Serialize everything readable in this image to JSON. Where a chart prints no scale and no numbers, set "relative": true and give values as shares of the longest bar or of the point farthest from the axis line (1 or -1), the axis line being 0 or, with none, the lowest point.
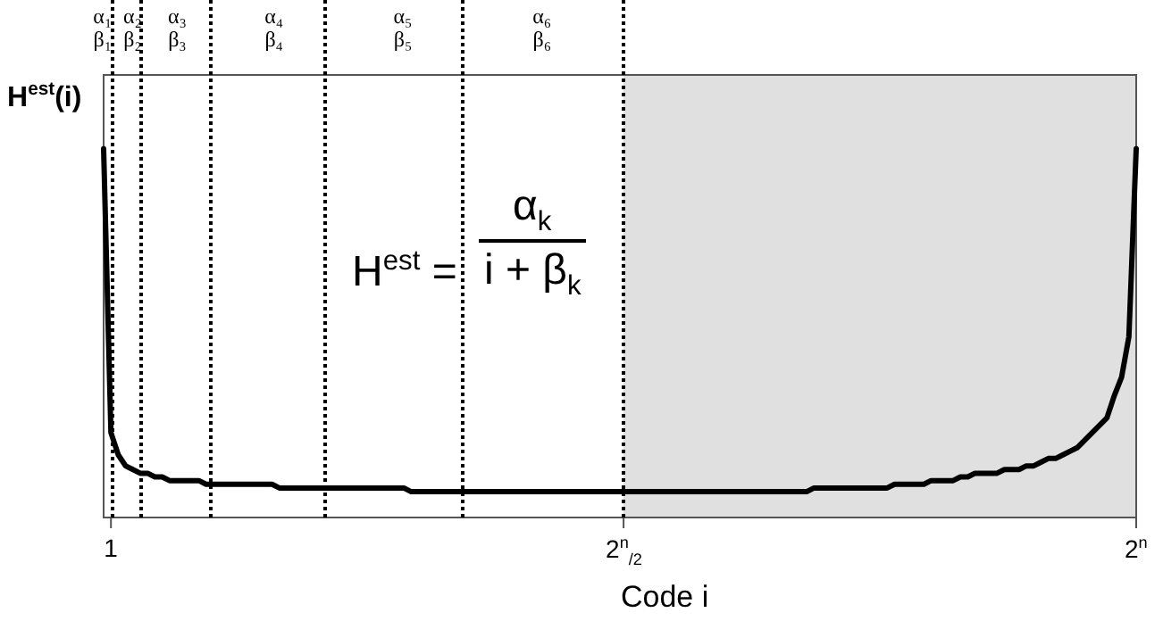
{
  "chart_data": {
    "type": "line",
    "relative": true,
    "xlabel": "Code i",
    "ylabel": "H$^{est}$(i)",
    "categories": [
      null,
      "1",
      null,
      null,
      null,
      null,
      null,
      null,
      null,
      null,
      null,
      null,
      null,
      null,
      null,
      null,
      null,
      null,
      null,
      null,
      null,
      null,
      null,
      null,
      null,
      null,
      null,
      null,
      null,
      null,
      null,
      null,
      null,
      null,
      null,
      null,
      null,
      null,
      null,
      null,
      null,
      null,
      null,
      null,
      null,
      null,
      null,
      null,
      null,
      null,
      null,
      null,
      null,
      null,
      null,
      null,
      null,
      null,
      null,
      null,
      null,
      null,
      null,
      null,
      null,
      null,
      null,
      null,
      null,
      null,
      null,
      "2$^{n}$$_{/2}$",
      null,
      null,
      null,
      null,
      null,
      null,
      null,
      null,
      null,
      null,
      null,
      null,
      null,
      null,
      null,
      null,
      null,
      null,
      null,
      null,
      null,
      null,
      null,
      null,
      null,
      null,
      null,
      null,
      null,
      null,
      null,
      null,
      null,
      null,
      null,
      null,
      null,
      null,
      null,
      null,
      null,
      null,
      null,
      null,
      null,
      null,
      null,
      null,
      null,
      null,
      null,
      null,
      null,
      null,
      null,
      null,
      null,
      null,
      null,
      null,
      null,
      null,
      null,
      null,
      null,
      null,
      null,
      null,
      null,
      "2$^{n}$"
    ],
    "series": [
      {
        "color": "#000000",
        "values": [
          1.0,
          0.23,
          0.17,
          0.14,
          0.13,
          0.12,
          0.12,
          0.11,
          0.11,
          0.1,
          0.1,
          0.1,
          0.1,
          0.1,
          0.09,
          0.09,
          0.09,
          0.09,
          0.09,
          0.09,
          0.09,
          0.09,
          0.09,
          0.09,
          0.08,
          0.08,
          0.08,
          0.08,
          0.08,
          0.08,
          0.08,
          0.08,
          0.08,
          0.08,
          0.08,
          0.08,
          0.08,
          0.08,
          0.08,
          0.08,
          0.08,
          0.08,
          0.07,
          0.07,
          0.07,
          0.07,
          0.07,
          0.07,
          0.07,
          0.07,
          0.07,
          0.07,
          0.07,
          0.07,
          0.07,
          0.07,
          0.07,
          0.07,
          0.07,
          0.07,
          0.07,
          0.07,
          0.07,
          0.07,
          0.07,
          0.07,
          0.07,
          0.07,
          0.07,
          0.07,
          0.07,
          0.07,
          0.07,
          0.07,
          0.07,
          0.07,
          0.07,
          0.07,
          0.07,
          0.07,
          0.07,
          0.07,
          0.07,
          0.07,
          0.07,
          0.07,
          0.07,
          0.07,
          0.07,
          0.07,
          0.07,
          0.07,
          0.07,
          0.07,
          0.07,
          0.07,
          0.07,
          0.08,
          0.08,
          0.08,
          0.08,
          0.08,
          0.08,
          0.08,
          0.08,
          0.08,
          0.08,
          0.08,
          0.09,
          0.09,
          0.09,
          0.09,
          0.09,
          0.1,
          0.1,
          0.1,
          0.1,
          0.11,
          0.11,
          0.12,
          0.12,
          0.12,
          0.12,
          0.13,
          0.13,
          0.13,
          0.14,
          0.14,
          0.15,
          0.16,
          0.16,
          0.17,
          0.18,
          0.19,
          0.21,
          0.23,
          0.25,
          0.27,
          0.33,
          0.38,
          0.49,
          1.0
        ]
      }
    ],
    "bands": [
      {
        "axis": "x",
        "from": "2$^{n}$$_{/2}$",
        "to": "2$^{n}$",
        "color": "#e0e0e0"
      }
    ],
    "annotations": [
      "α₁\nβ₁",
      "α₂\nβ₂",
      "α₃\nβ₃",
      "α₄\nβ₄",
      "α₅\nβ₅",
      "α₆\nβ₆",
      "H$^{est}$ =",
      "α$_{k}$",
      "i + β$_{k}$"
    ]
  }
}
